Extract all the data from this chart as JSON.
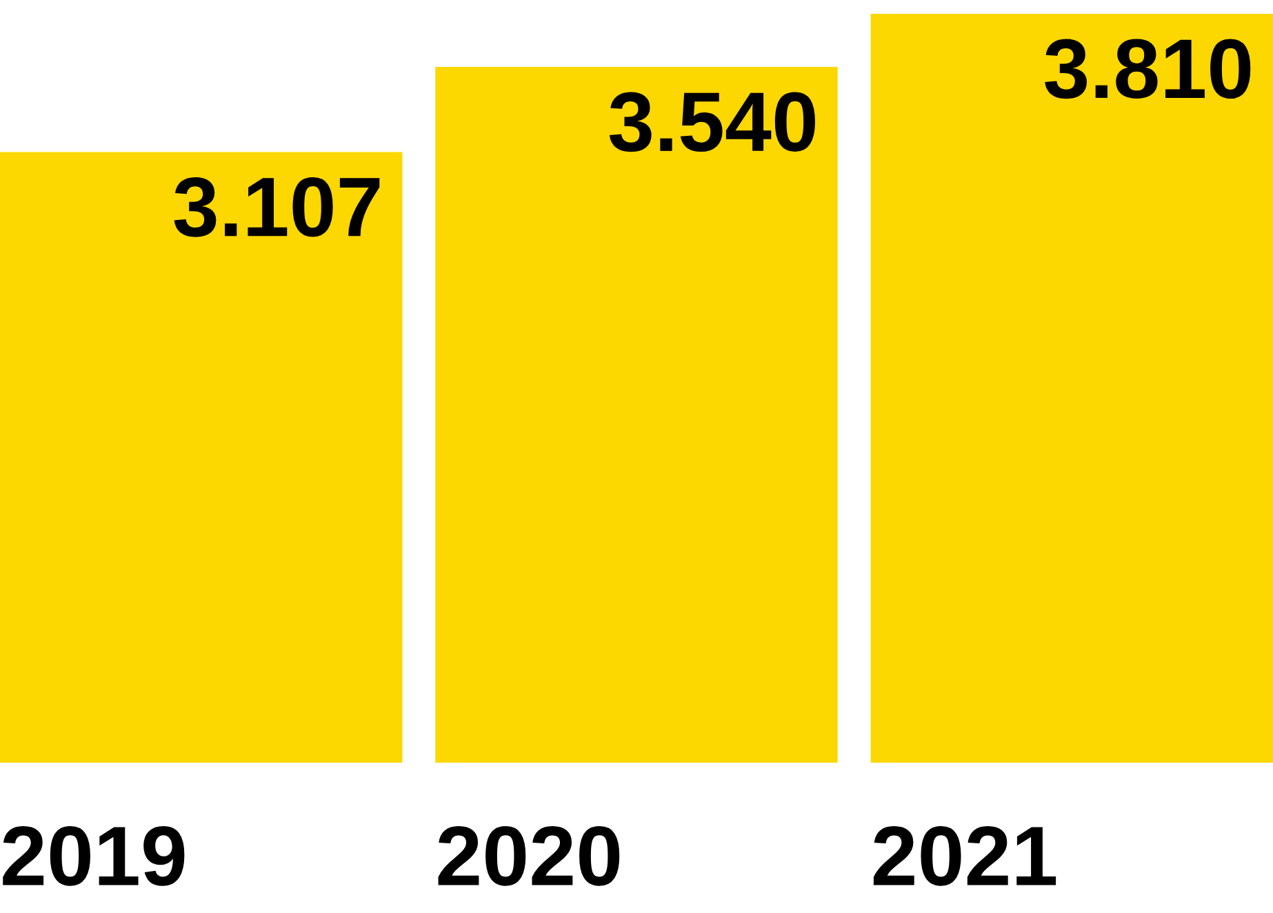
{
  "chart_data": {
    "type": "bar",
    "categories": [
      "2019",
      "2020",
      "2021"
    ],
    "values": [
      3107,
      3540,
      3810
    ],
    "value_labels": [
      "3.107",
      "3.540",
      "3.810"
    ],
    "color": "#fcd700",
    "tick_labels": "x"
  }
}
